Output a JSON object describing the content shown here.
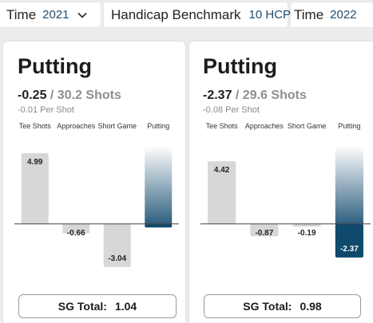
{
  "filters": {
    "time1": {
      "label": "Time",
      "value": "2021"
    },
    "benchmark": {
      "label": "Handicap Benchmark",
      "value": "10 HCP"
    },
    "time2": {
      "label": "Time",
      "value": "2022"
    }
  },
  "colors": {
    "neutral_bar": "#d7d7d7",
    "focus_positive": "#2f5f80",
    "focus_negative": "#0f4a6c",
    "focus_gradient_top": "#ffffff"
  },
  "cards": [
    {
      "title": "Putting",
      "sg_value": "-0.25",
      "sg_shots": " / 30.2 Shots",
      "per_shot": "-0.01 Per Shot",
      "total_label": "SG Total:",
      "total_value": "1.04",
      "chart_data": {
        "type": "bar",
        "categories": [
          "Tee Shots",
          "Approaches",
          "Short Game",
          "Putting"
        ],
        "values": [
          4.99,
          -0.66,
          -3.04,
          -0.25
        ],
        "highlight_index": 3,
        "ylim": [
          -3.5,
          5.5
        ]
      }
    },
    {
      "title": "Putting",
      "sg_value": "-2.37",
      "sg_shots": " / 29.6 Shots",
      "per_shot": "-0.08 Per Shot",
      "total_label": "SG Total:",
      "total_value": "0.98",
      "chart_data": {
        "type": "bar",
        "categories": [
          "Tee Shots",
          "Approaches",
          "Short Game",
          "Putting"
        ],
        "values": [
          4.42,
          -0.87,
          -0.19,
          -2.37
        ],
        "highlight_index": 3,
        "ylim": [
          -3.5,
          5.5
        ]
      }
    }
  ]
}
